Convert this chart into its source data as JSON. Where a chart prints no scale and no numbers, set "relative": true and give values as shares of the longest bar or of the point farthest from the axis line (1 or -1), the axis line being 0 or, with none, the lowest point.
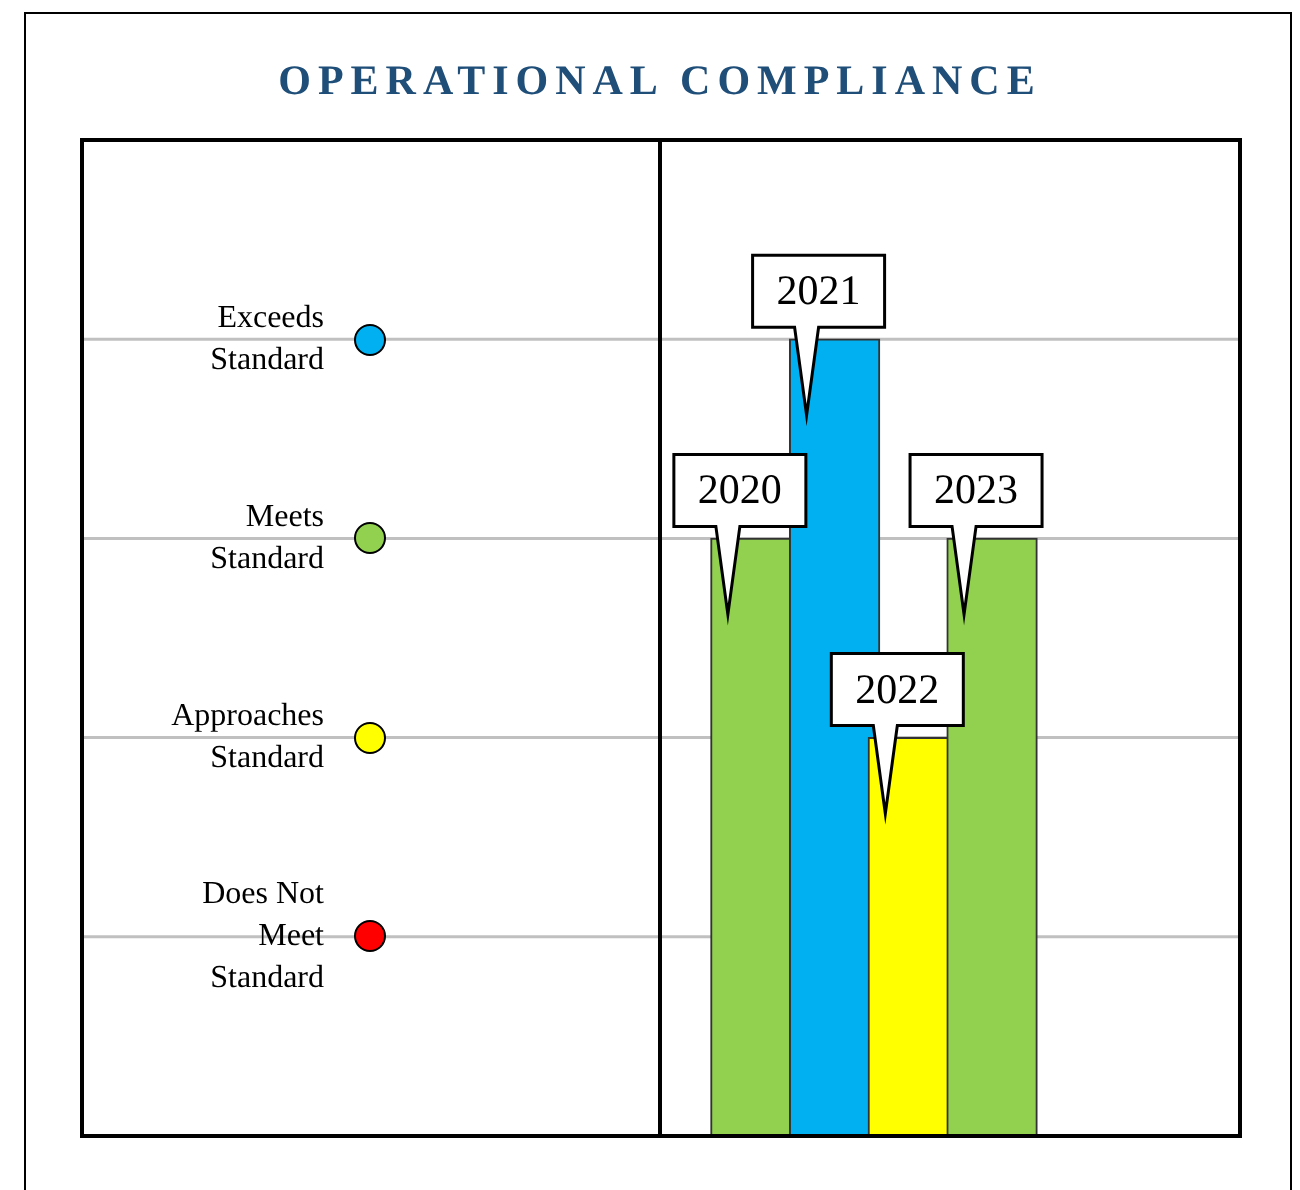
{
  "chart_data": {
    "type": "bar",
    "title": "OPERATIONAL COMPLIANCE",
    "categories": [
      "2020",
      "2021",
      "2022",
      "2023"
    ],
    "values": [
      0.75,
      1,
      0.5,
      0.75
    ],
    "relative": true,
    "colors": [
      "#92d050",
      "#00b0f0",
      "#ffff00",
      "#92d050"
    ],
    "ref_lines": [
      {
        "axis": "y",
        "value": 1,
        "label": "Exceeds Standard",
        "color": "#c0c0c0"
      },
      {
        "axis": "y",
        "value": 0.75,
        "label": "Meets Standard",
        "color": "#c0c0c0"
      },
      {
        "axis": "y",
        "value": 0.5,
        "label": "Approaches Standard",
        "color": "#c0c0c0"
      },
      {
        "axis": "y",
        "value": 0.25,
        "label": "Does Not Meet Standard",
        "color": "#c0c0c0"
      }
    ],
    "legend": false
  }
}
